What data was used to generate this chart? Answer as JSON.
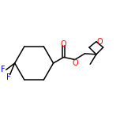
{
  "bg_color": "#ffffff",
  "bond_color": "#000000",
  "atom_colors": {
    "O": "#ff0000",
    "F": "#0000ff"
  },
  "figsize": [
    1.52,
    1.52
  ],
  "dpi": 100,
  "lw": 1.1,
  "fs": 7.0
}
